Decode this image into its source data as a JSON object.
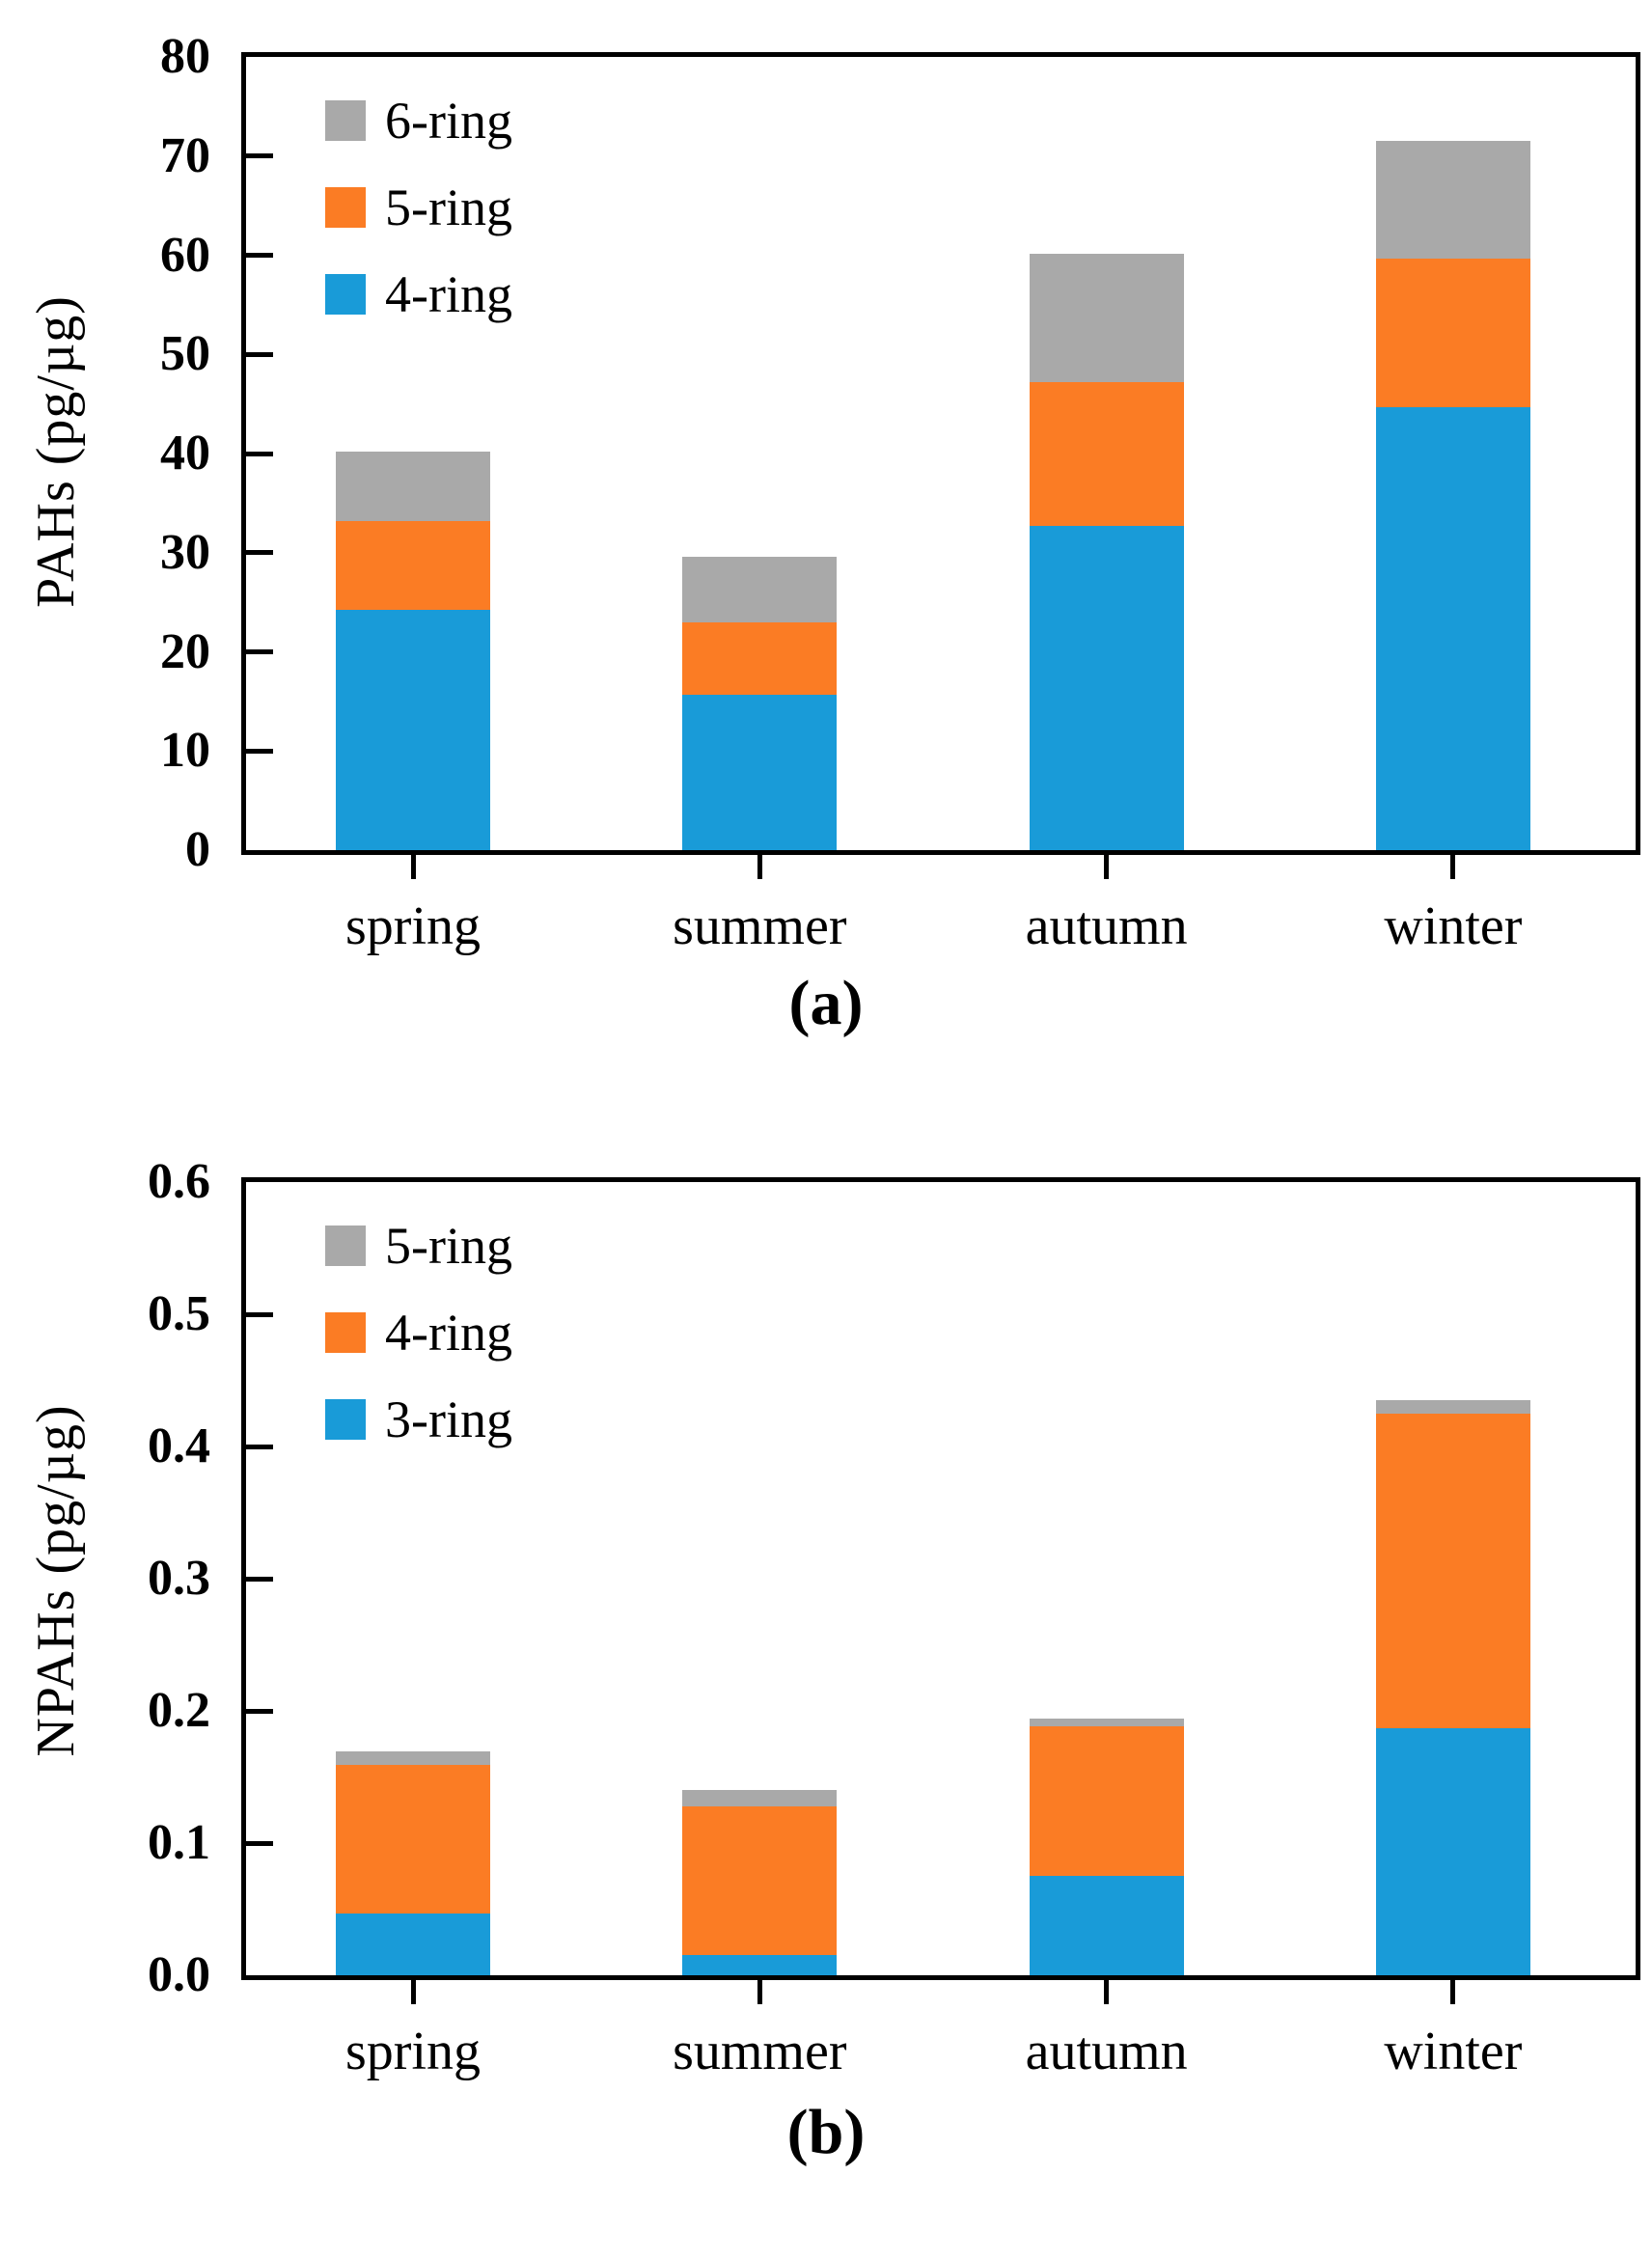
{
  "figure": {
    "panel_captions": [
      "(a)",
      "(b)"
    ],
    "background_color": "#ffffff",
    "axis_color": "#000000"
  },
  "chart_data": [
    {
      "id": "a",
      "type": "bar",
      "stacked": true,
      "title": "",
      "xlabel": "",
      "ylabel": "PAHs (pg/µg)",
      "caption": "(a)",
      "categories": [
        "spring",
        "summer",
        "autumn",
        "winter"
      ],
      "series": [
        {
          "name": "4-ring",
          "color": "#199BD8",
          "values": [
            24.2,
            15.7,
            32.7,
            44.7
          ]
        },
        {
          "name": "5-ring",
          "color": "#FB7C24",
          "values": [
            9.0,
            7.3,
            14.5,
            15.0
          ]
        },
        {
          "name": "6-ring",
          "color": "#A9A9A9",
          "values": [
            7.0,
            6.6,
            12.9,
            11.8
          ]
        }
      ],
      "totals": [
        40.2,
        29.6,
        60.1,
        71.5
      ],
      "ylim": [
        0,
        80
      ],
      "ytick_values": [
        0,
        10,
        20,
        30,
        40,
        50,
        60,
        70,
        80
      ],
      "ytick_labels": [
        "0",
        "10",
        "20",
        "30",
        "40",
        "50",
        "60",
        "70",
        "80"
      ],
      "legend": [
        {
          "label": "6-ring",
          "color": "#A9A9A9"
        },
        {
          "label": "5-ring",
          "color": "#FB7C24"
        },
        {
          "label": "4-ring",
          "color": "#199BD8"
        }
      ],
      "legend_position": "top-left",
      "grid": false
    },
    {
      "id": "b",
      "type": "bar",
      "stacked": true,
      "title": "",
      "xlabel": "",
      "ylabel": "NPAHs (pg/µg)",
      "caption": "(b)",
      "categories": [
        "spring",
        "summer",
        "autumn",
        "winter"
      ],
      "series": [
        {
          "name": "3-ring",
          "color": "#199BD8",
          "values": [
            0.047,
            0.015,
            0.075,
            0.187
          ]
        },
        {
          "name": "4-ring",
          "color": "#FB7C24",
          "values": [
            0.112,
            0.113,
            0.113,
            0.238
          ]
        },
        {
          "name": "5-ring",
          "color": "#A9A9A9",
          "values": [
            0.01,
            0.012,
            0.006,
            0.01
          ]
        }
      ],
      "totals": [
        0.169,
        0.14,
        0.194,
        0.435
      ],
      "ylim": [
        0,
        0.6
      ],
      "ytick_values": [
        0,
        0.1,
        0.2,
        0.3,
        0.4,
        0.5,
        0.6
      ],
      "ytick_labels": [
        "0.0",
        "0.1",
        "0.2",
        "0.3",
        "0.4",
        "0.5",
        "0.6"
      ],
      "legend": [
        {
          "label": "5-ring",
          "color": "#A9A9A9"
        },
        {
          "label": "4-ring",
          "color": "#FB7C24"
        },
        {
          "label": "3-ring",
          "color": "#199BD8"
        }
      ],
      "legend_position": "top-left",
      "grid": false
    }
  ]
}
